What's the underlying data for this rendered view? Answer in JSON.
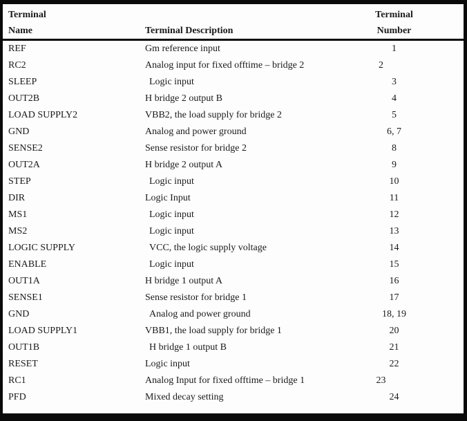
{
  "colors": {
    "frame": "#0a0a0a",
    "text": "#1a1a1a",
    "background": "#fdfdfd"
  },
  "table": {
    "header": {
      "col1_line1": "Terminal",
      "col1_line2": "Name",
      "col2": "Terminal Description",
      "col3_line1": "Terminal",
      "col3_line2": "Number"
    },
    "rows": [
      {
        "name": "REF",
        "description": "Gm reference input",
        "number": "1"
      },
      {
        "name": "RC2",
        "description": "Analog input for fixed offtime – bridge 2",
        "number": "2",
        "num_shift": true
      },
      {
        "name": "SLEEP",
        "description": "Logic input",
        "number": "3",
        "desc_indent": true
      },
      {
        "name": "OUT2B",
        "description": "H bridge 2 output B",
        "number": "4"
      },
      {
        "name": "LOAD SUPPLY2",
        "description": "VBB2, the load supply for bridge 2",
        "number": "5"
      },
      {
        "name": "GND",
        "description": "Analog and power ground",
        "number": "6, 7"
      },
      {
        "name": "SENSE2",
        "description": "Sense resistor for bridge 2",
        "number": "8"
      },
      {
        "name": "OUT2A",
        "description": "H bridge 2 output A",
        "number": "9"
      },
      {
        "name": "STEP",
        "description": "Logic input",
        "number": "10",
        "desc_indent": true
      },
      {
        "name": "DIR",
        "description": "Logic Input",
        "number": "11"
      },
      {
        "name": "MS1",
        "description": "Logic input",
        "number": "12",
        "desc_indent": true
      },
      {
        "name": "MS2",
        "description": "Logic input",
        "number": "13",
        "desc_indent": true
      },
      {
        "name": "LOGIC SUPPLY",
        "description": "VCC, the logic supply voltage",
        "number": "14",
        "desc_indent": true
      },
      {
        "name": "ENABLE",
        "description": "Logic input",
        "number": "15",
        "desc_indent": true
      },
      {
        "name": "OUT1A",
        "description": "H bridge 1 output A",
        "number": "16"
      },
      {
        "name": "SENSE1",
        "description": "Sense resistor for bridge 1",
        "number": "17"
      },
      {
        "name": "GND",
        "description": "Analog and power ground",
        "number": "18, 19",
        "desc_indent": true
      },
      {
        "name": "LOAD SUPPLY1",
        "description": "VBB1, the load supply for bridge 1",
        "number": "20"
      },
      {
        "name": "OUT1B",
        "description": "H bridge 1 output B",
        "number": "21",
        "desc_indent": true
      },
      {
        "name": "RESET",
        "description": "Logic input",
        "number": "22"
      },
      {
        "name": "RC1",
        "description": "Analog Input for fixed offtime – bridge 1",
        "number": "23",
        "num_shift": true
      },
      {
        "name": "PFD",
        "description": "Mixed decay setting",
        "number": "24"
      }
    ]
  }
}
